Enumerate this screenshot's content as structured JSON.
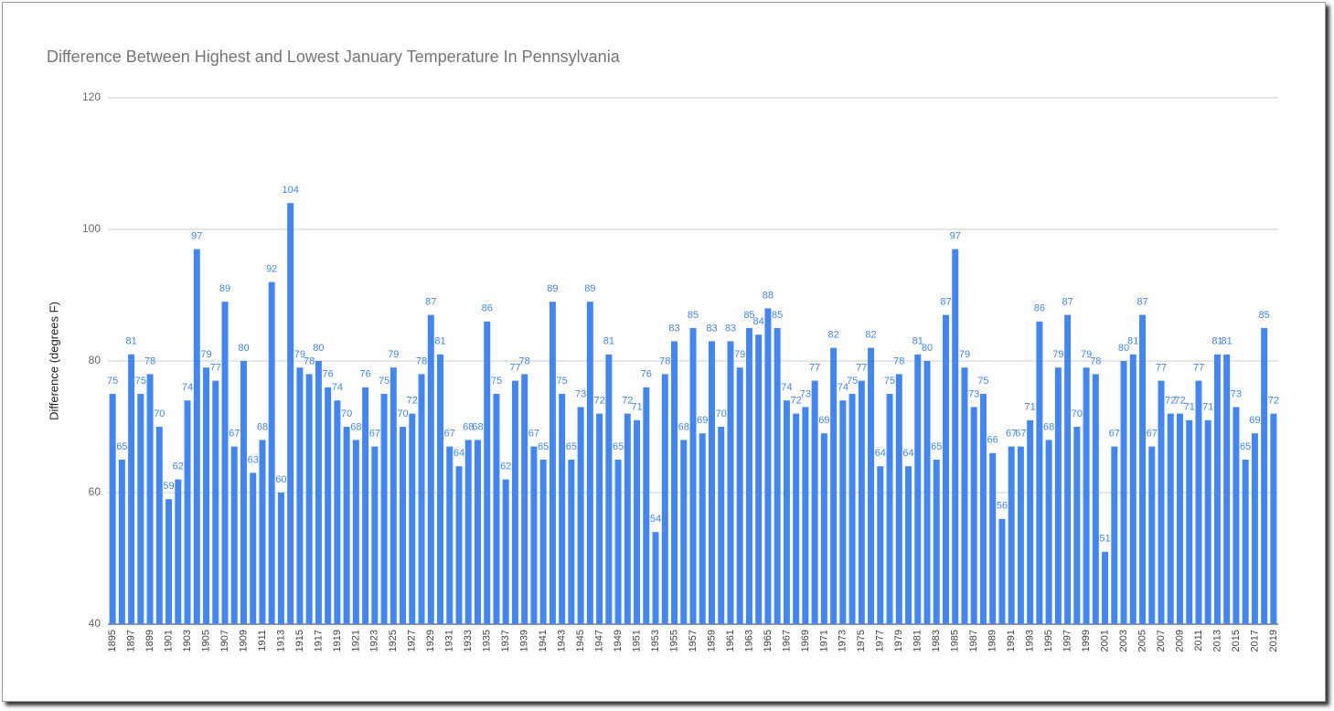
{
  "chart_data": {
    "type": "bar",
    "title": "Difference Between Highest and Lowest January Temperature In Pennsylvania",
    "y_label": "Difference (degrees F)",
    "categories": [
      "1895",
      null,
      "1897",
      null,
      "1899",
      null,
      "1901",
      null,
      "1903",
      null,
      "1905",
      null,
      "1907",
      null,
      "1909",
      null,
      "1911",
      null,
      "1913",
      null,
      "1915",
      null,
      "1917",
      null,
      "1919",
      null,
      "1921",
      null,
      "1923",
      null,
      "1925",
      null,
      "1927",
      null,
      "1929",
      null,
      "1931",
      null,
      "1933",
      null,
      "1935",
      null,
      "1937",
      null,
      "1939",
      null,
      "1941",
      null,
      "1943",
      null,
      "1945",
      null,
      "1947",
      null,
      "1949",
      null,
      "1951",
      null,
      "1953",
      null,
      "1955",
      null,
      "1957",
      null,
      "1959",
      null,
      "1961",
      null,
      "1963",
      null,
      "1965",
      null,
      "1967",
      null,
      "1969",
      null,
      "1971",
      null,
      "1973",
      null,
      "1975",
      null,
      "1977",
      null,
      "1979",
      null,
      "1981",
      null,
      "1983",
      null,
      "1985",
      null,
      "1987",
      null,
      "1989",
      null,
      "1991",
      null,
      "1993",
      null,
      "1995",
      null,
      "1997",
      null,
      "1999",
      null,
      "2001",
      null,
      "2003",
      null,
      "2005",
      null,
      "2007",
      null,
      "2009",
      null,
      "2011",
      null,
      "2013",
      null,
      "2015",
      null,
      "2017",
      null,
      "2019"
    ],
    "values": [
      75,
      65,
      81,
      75,
      78,
      70,
      59,
      62,
      74,
      97,
      79,
      77,
      89,
      67,
      80,
      63,
      68,
      92,
      60,
      104,
      79,
      78,
      80,
      76,
      74,
      70,
      68,
      76,
      67,
      75,
      79,
      70,
      72,
      78,
      87,
      81,
      67,
      64,
      68,
      68,
      86,
      75,
      62,
      77,
      78,
      67,
      65,
      89,
      75,
      65,
      73,
      89,
      72,
      81,
      65,
      72,
      71,
      76,
      54,
      78,
      83,
      68,
      85,
      69,
      83,
      70,
      83,
      79,
      85,
      84,
      88,
      85,
      74,
      72,
      73,
      77,
      69,
      82,
      74,
      75,
      77,
      82,
      64,
      75,
      78,
      64,
      81,
      80,
      65,
      87,
      97,
      79,
      73,
      75,
      66,
      56,
      67,
      67,
      71,
      86,
      68,
      79,
      87,
      70,
      79,
      78,
      51,
      67,
      80,
      81,
      87,
      67,
      77,
      72,
      72,
      71,
      77,
      71,
      81,
      81,
      73,
      65,
      69,
      85,
      72
    ],
    "color": "#4285f4",
    "ylim": [
      40,
      120
    ],
    "yticks": [
      40,
      60,
      80,
      100,
      120
    ],
    "grid": true
  }
}
